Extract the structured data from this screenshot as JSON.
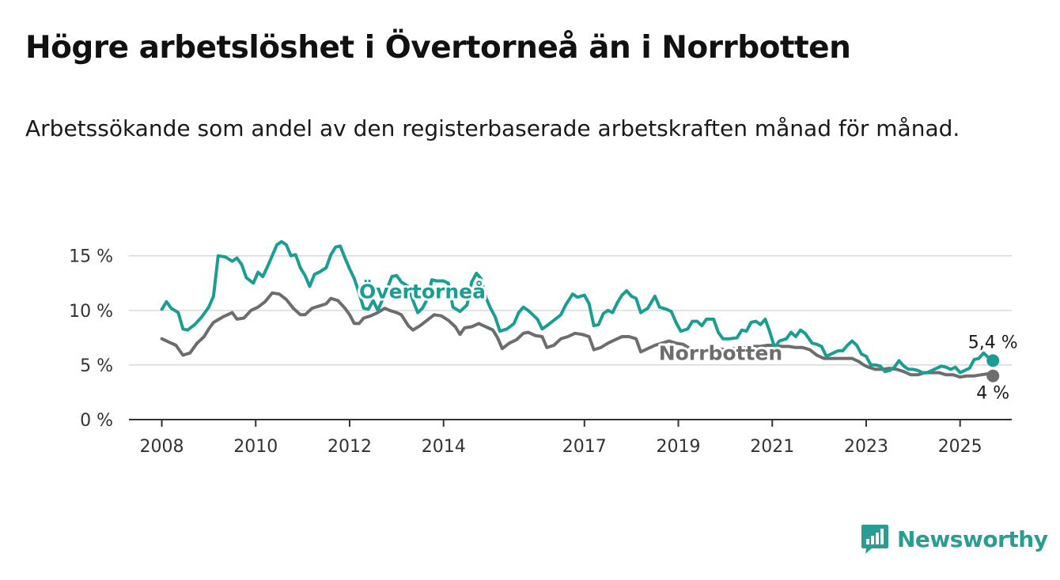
{
  "title": "Högre arbetslöshet i Övertorneå än i Norrbotten",
  "subtitle": "Arbetssökande som andel av den registerbaserade arbetskraften månad för månad.",
  "brand": {
    "name": "Newsworthy",
    "color": "#2a9d93",
    "icon": "bar-chart-badge-icon"
  },
  "chart_data": {
    "type": "line",
    "x_axis": {
      "range": [
        2007.3,
        2026.1
      ],
      "tick_values": [
        2008,
        2010,
        2012,
        2014,
        2017,
        2019,
        2021,
        2023,
        2025
      ],
      "tick_labels": [
        "2008",
        "2010",
        "2012",
        "2014",
        "2017",
        "2019",
        "2021",
        "2023",
        "2025"
      ]
    },
    "y_axis": {
      "range": [
        0,
        16.5
      ],
      "tick_values": [
        0,
        5,
        10,
        15
      ],
      "tick_labels": [
        "0 %",
        "5 %",
        "10 %",
        "15 %"
      ]
    },
    "grid": "horizontal",
    "series": [
      {
        "name": "Övertorneå",
        "color": "#1a9e94",
        "end_label": "5,4 %",
        "points": [
          [
            2008.0,
            10.1
          ],
          [
            2008.1,
            10.8
          ],
          [
            2008.2,
            10.2
          ],
          [
            2008.35,
            9.8
          ],
          [
            2008.45,
            8.3
          ],
          [
            2008.55,
            8.2
          ],
          [
            2008.7,
            8.7
          ],
          [
            2008.85,
            9.4
          ],
          [
            2009.0,
            10.3
          ],
          [
            2009.1,
            11.3
          ],
          [
            2009.2,
            15.0
          ],
          [
            2009.35,
            14.9
          ],
          [
            2009.5,
            14.5
          ],
          [
            2009.6,
            14.8
          ],
          [
            2009.7,
            14.2
          ],
          [
            2009.8,
            13.0
          ],
          [
            2009.95,
            12.5
          ],
          [
            2010.05,
            13.5
          ],
          [
            2010.15,
            13.1
          ],
          [
            2010.25,
            14.0
          ],
          [
            2010.35,
            15.0
          ],
          [
            2010.45,
            16.0
          ],
          [
            2010.55,
            16.3
          ],
          [
            2010.65,
            16.0
          ],
          [
            2010.75,
            15.0
          ],
          [
            2010.85,
            15.1
          ],
          [
            2010.95,
            13.9
          ],
          [
            2011.05,
            13.2
          ],
          [
            2011.15,
            12.2
          ],
          [
            2011.25,
            13.3
          ],
          [
            2011.35,
            13.5
          ],
          [
            2011.5,
            13.9
          ],
          [
            2011.6,
            15.1
          ],
          [
            2011.7,
            15.8
          ],
          [
            2011.8,
            15.9
          ],
          [
            2011.9,
            14.8
          ],
          [
            2012.0,
            13.8
          ],
          [
            2012.1,
            12.9
          ],
          [
            2012.2,
            11.6
          ],
          [
            2012.3,
            10.2
          ],
          [
            2012.4,
            10.1
          ],
          [
            2012.5,
            10.9
          ],
          [
            2012.6,
            10.0
          ],
          [
            2012.7,
            11.0
          ],
          [
            2012.8,
            12.0
          ],
          [
            2012.9,
            13.1
          ],
          [
            2013.0,
            13.2
          ],
          [
            2013.1,
            12.6
          ],
          [
            2013.25,
            12.2
          ],
          [
            2013.35,
            10.9
          ],
          [
            2013.45,
            9.8
          ],
          [
            2013.55,
            10.2
          ],
          [
            2013.65,
            11.0
          ],
          [
            2013.75,
            12.8
          ],
          [
            2013.85,
            12.7
          ],
          [
            2014.0,
            12.7
          ],
          [
            2014.1,
            12.5
          ],
          [
            2014.2,
            10.3
          ],
          [
            2014.35,
            9.9
          ],
          [
            2014.5,
            10.5
          ],
          [
            2014.6,
            12.6
          ],
          [
            2014.7,
            13.4
          ],
          [
            2014.8,
            12.9
          ],
          [
            2014.9,
            11.2
          ],
          [
            2015.0,
            10.2
          ],
          [
            2015.1,
            9.4
          ],
          [
            2015.2,
            8.1
          ],
          [
            2015.35,
            8.3
          ],
          [
            2015.5,
            8.8
          ],
          [
            2015.6,
            9.8
          ],
          [
            2015.7,
            10.3
          ],
          [
            2015.8,
            10.0
          ],
          [
            2015.9,
            9.6
          ],
          [
            2016.0,
            9.2
          ],
          [
            2016.1,
            8.3
          ],
          [
            2016.2,
            8.6
          ],
          [
            2016.35,
            9.1
          ],
          [
            2016.5,
            9.6
          ],
          [
            2016.6,
            10.5
          ],
          [
            2016.75,
            11.5
          ],
          [
            2016.85,
            11.2
          ],
          [
            2017.0,
            11.4
          ],
          [
            2017.1,
            10.6
          ],
          [
            2017.2,
            8.6
          ],
          [
            2017.3,
            8.7
          ],
          [
            2017.4,
            9.7
          ],
          [
            2017.5,
            10.0
          ],
          [
            2017.6,
            9.8
          ],
          [
            2017.7,
            10.7
          ],
          [
            2017.8,
            11.4
          ],
          [
            2017.9,
            11.8
          ],
          [
            2018.0,
            11.3
          ],
          [
            2018.1,
            11.1
          ],
          [
            2018.2,
            9.8
          ],
          [
            2018.35,
            10.2
          ],
          [
            2018.5,
            11.3
          ],
          [
            2018.6,
            10.3
          ],
          [
            2018.75,
            10.1
          ],
          [
            2018.85,
            9.9
          ],
          [
            2018.95,
            8.9
          ],
          [
            2019.05,
            8.1
          ],
          [
            2019.2,
            8.3
          ],
          [
            2019.3,
            9.0
          ],
          [
            2019.4,
            9.0
          ],
          [
            2019.5,
            8.6
          ],
          [
            2019.6,
            9.2
          ],
          [
            2019.75,
            9.2
          ],
          [
            2019.85,
            8.0
          ],
          [
            2019.95,
            7.4
          ],
          [
            2020.1,
            7.4
          ],
          [
            2020.25,
            7.5
          ],
          [
            2020.35,
            8.2
          ],
          [
            2020.45,
            8.1
          ],
          [
            2020.55,
            8.9
          ],
          [
            2020.65,
            9.0
          ],
          [
            2020.75,
            8.7
          ],
          [
            2020.85,
            9.2
          ],
          [
            2020.95,
            8.0
          ],
          [
            2021.05,
            6.6
          ],
          [
            2021.15,
            7.2
          ],
          [
            2021.3,
            7.4
          ],
          [
            2021.4,
            8.0
          ],
          [
            2021.5,
            7.6
          ],
          [
            2021.6,
            8.2
          ],
          [
            2021.7,
            7.9
          ],
          [
            2021.85,
            7.0
          ],
          [
            2021.95,
            6.9
          ],
          [
            2022.05,
            6.7
          ],
          [
            2022.15,
            5.8
          ],
          [
            2022.25,
            6.0
          ],
          [
            2022.4,
            6.3
          ],
          [
            2022.5,
            6.3
          ],
          [
            2022.6,
            6.8
          ],
          [
            2022.7,
            7.2
          ],
          [
            2022.8,
            6.8
          ],
          [
            2022.9,
            6.0
          ],
          [
            2023.0,
            5.8
          ],
          [
            2023.1,
            5.0
          ],
          [
            2023.2,
            5.0
          ],
          [
            2023.3,
            4.9
          ],
          [
            2023.4,
            4.4
          ],
          [
            2023.5,
            4.5
          ],
          [
            2023.6,
            4.8
          ],
          [
            2023.7,
            5.4
          ],
          [
            2023.8,
            4.9
          ],
          [
            2023.9,
            4.6
          ],
          [
            2024.0,
            4.6
          ],
          [
            2024.1,
            4.5
          ],
          [
            2024.2,
            4.3
          ],
          [
            2024.3,
            4.3
          ],
          [
            2024.4,
            4.5
          ],
          [
            2024.5,
            4.7
          ],
          [
            2024.6,
            4.9
          ],
          [
            2024.7,
            4.8
          ],
          [
            2024.8,
            4.6
          ],
          [
            2024.9,
            4.8
          ],
          [
            2025.0,
            4.3
          ],
          [
            2025.1,
            4.5
          ],
          [
            2025.2,
            4.7
          ],
          [
            2025.3,
            5.5
          ],
          [
            2025.4,
            5.6
          ],
          [
            2025.5,
            6.1
          ],
          [
            2025.6,
            5.7
          ],
          [
            2025.7,
            5.4
          ]
        ]
      },
      {
        "name": "Norrbotten",
        "color": "#6d6d6d",
        "end_label": "4 %",
        "points": [
          [
            2008.0,
            7.4
          ],
          [
            2008.15,
            7.1
          ],
          [
            2008.3,
            6.8
          ],
          [
            2008.45,
            5.9
          ],
          [
            2008.6,
            6.1
          ],
          [
            2008.75,
            7.0
          ],
          [
            2008.9,
            7.6
          ],
          [
            2009.0,
            8.3
          ],
          [
            2009.1,
            8.9
          ],
          [
            2009.3,
            9.4
          ],
          [
            2009.5,
            9.8
          ],
          [
            2009.6,
            9.2
          ],
          [
            2009.75,
            9.3
          ],
          [
            2009.9,
            10.0
          ],
          [
            2010.05,
            10.3
          ],
          [
            2010.2,
            10.8
          ],
          [
            2010.35,
            11.6
          ],
          [
            2010.5,
            11.5
          ],
          [
            2010.65,
            11.0
          ],
          [
            2010.8,
            10.2
          ],
          [
            2010.95,
            9.6
          ],
          [
            2011.05,
            9.6
          ],
          [
            2011.2,
            10.2
          ],
          [
            2011.35,
            10.4
          ],
          [
            2011.5,
            10.6
          ],
          [
            2011.6,
            11.1
          ],
          [
            2011.75,
            10.9
          ],
          [
            2011.9,
            10.2
          ],
          [
            2012.0,
            9.6
          ],
          [
            2012.1,
            8.8
          ],
          [
            2012.2,
            8.8
          ],
          [
            2012.3,
            9.3
          ],
          [
            2012.45,
            9.5
          ],
          [
            2012.6,
            9.8
          ],
          [
            2012.75,
            10.2
          ],
          [
            2012.85,
            10.0
          ],
          [
            2013.0,
            9.8
          ],
          [
            2013.1,
            9.6
          ],
          [
            2013.25,
            8.6
          ],
          [
            2013.35,
            8.2
          ],
          [
            2013.5,
            8.6
          ],
          [
            2013.65,
            9.1
          ],
          [
            2013.8,
            9.6
          ],
          [
            2013.95,
            9.5
          ],
          [
            2014.1,
            9.1
          ],
          [
            2014.25,
            8.5
          ],
          [
            2014.35,
            7.8
          ],
          [
            2014.45,
            8.4
          ],
          [
            2014.6,
            8.5
          ],
          [
            2014.75,
            8.8
          ],
          [
            2014.9,
            8.5
          ],
          [
            2015.05,
            8.2
          ],
          [
            2015.15,
            7.5
          ],
          [
            2015.25,
            6.5
          ],
          [
            2015.4,
            7.0
          ],
          [
            2015.55,
            7.3
          ],
          [
            2015.7,
            7.9
          ],
          [
            2015.8,
            8.0
          ],
          [
            2015.95,
            7.7
          ],
          [
            2016.1,
            7.6
          ],
          [
            2016.2,
            6.6
          ],
          [
            2016.35,
            6.8
          ],
          [
            2016.5,
            7.4
          ],
          [
            2016.65,
            7.6
          ],
          [
            2016.8,
            7.9
          ],
          [
            2016.95,
            7.8
          ],
          [
            2017.1,
            7.6
          ],
          [
            2017.2,
            6.4
          ],
          [
            2017.35,
            6.6
          ],
          [
            2017.5,
            7.0
          ],
          [
            2017.65,
            7.3
          ],
          [
            2017.8,
            7.6
          ],
          [
            2017.95,
            7.6
          ],
          [
            2018.1,
            7.4
          ],
          [
            2018.2,
            6.2
          ],
          [
            2018.35,
            6.5
          ],
          [
            2018.5,
            6.8
          ],
          [
            2018.65,
            7.0
          ],
          [
            2018.8,
            7.2
          ],
          [
            2018.95,
            7.0
          ],
          [
            2019.1,
            6.9
          ],
          [
            2019.25,
            6.5
          ],
          [
            2019.4,
            6.4
          ],
          [
            2019.55,
            6.4
          ],
          [
            2019.7,
            6.5
          ],
          [
            2019.85,
            6.5
          ],
          [
            2020.0,
            6.4
          ],
          [
            2020.15,
            6.5
          ],
          [
            2020.3,
            6.5
          ],
          [
            2020.45,
            6.6
          ],
          [
            2020.6,
            6.7
          ],
          [
            2020.75,
            6.7
          ],
          [
            2020.9,
            6.8
          ],
          [
            2021.05,
            6.8
          ],
          [
            2021.2,
            6.7
          ],
          [
            2021.35,
            6.7
          ],
          [
            2021.5,
            6.6
          ],
          [
            2021.65,
            6.6
          ],
          [
            2021.8,
            6.4
          ],
          [
            2021.95,
            5.9
          ],
          [
            2022.1,
            5.6
          ],
          [
            2022.25,
            5.6
          ],
          [
            2022.4,
            5.6
          ],
          [
            2022.55,
            5.6
          ],
          [
            2022.7,
            5.6
          ],
          [
            2022.85,
            5.3
          ],
          [
            2022.95,
            5.0
          ],
          [
            2023.05,
            4.8
          ],
          [
            2023.2,
            4.6
          ],
          [
            2023.35,
            4.6
          ],
          [
            2023.5,
            4.7
          ],
          [
            2023.65,
            4.6
          ],
          [
            2023.8,
            4.4
          ],
          [
            2023.95,
            4.1
          ],
          [
            2024.1,
            4.1
          ],
          [
            2024.25,
            4.3
          ],
          [
            2024.4,
            4.3
          ],
          [
            2024.55,
            4.3
          ],
          [
            2024.7,
            4.1
          ],
          [
            2024.85,
            4.1
          ],
          [
            2025.0,
            3.9
          ],
          [
            2025.15,
            4.0
          ],
          [
            2025.3,
            4.0
          ],
          [
            2025.45,
            4.1
          ],
          [
            2025.6,
            4.2
          ],
          [
            2025.7,
            4.0
          ]
        ]
      }
    ]
  }
}
